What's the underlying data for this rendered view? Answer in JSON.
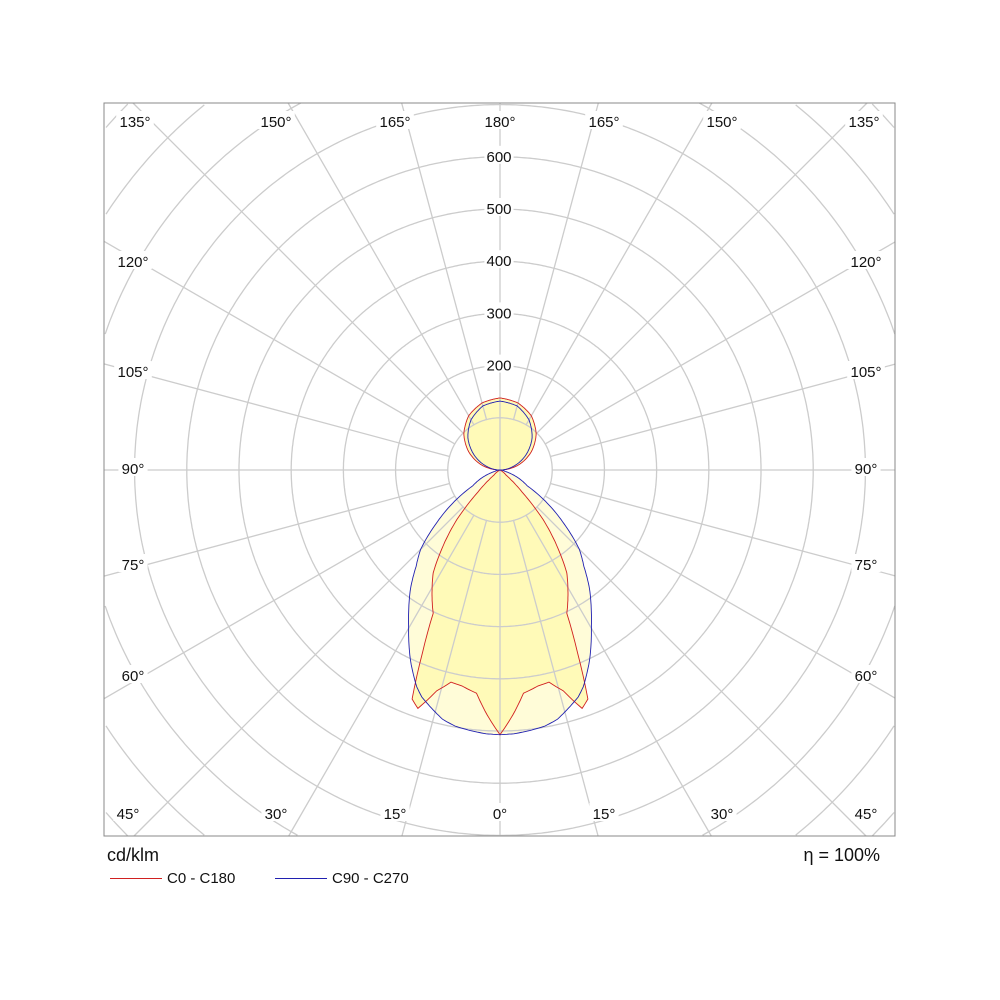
{
  "chart_data": {
    "type": "polar",
    "unit": "cd/klm",
    "efficiency": "η = 100%",
    "radial_ticks": [
      200,
      300,
      400,
      500,
      600
    ],
    "radial_tick_labels": [
      "200",
      "300",
      "400",
      "500",
      "600"
    ],
    "radial_grid_step": 100,
    "angle_grid_step": 15,
    "angle_labels": {
      "top": [
        "135°",
        "150°",
        "165°",
        "180°",
        "165°",
        "150°",
        "135°"
      ],
      "left": [
        "120°",
        "105°",
        "90°",
        "75°",
        "60°"
      ],
      "right": [
        "120°",
        "105°",
        "90°",
        "75°",
        "60°"
      ],
      "bottom": [
        "45°",
        "30°",
        "15°",
        "0°",
        "15°",
        "30°",
        "45°"
      ]
    },
    "grid": true,
    "legend_position": "bottom-left",
    "angles": [
      0,
      3,
      6,
      10,
      13,
      16,
      19,
      21,
      23,
      25,
      30,
      33,
      37,
      41,
      45,
      50,
      60,
      75,
      90,
      105,
      120,
      135,
      150,
      165,
      180
    ],
    "series": [
      {
        "name": "C0 - C180",
        "color": "#d02020",
        "values": [
          507,
          470,
          430,
          420,
          417,
          440,
          483,
          470,
          380,
          303,
          260,
          235,
          180,
          126,
          60,
          15,
          3,
          0,
          0,
          36,
          69,
          98,
          120,
          133,
          138
        ]
      },
      {
        "name": "C90 - C270",
        "color": "#2020b0",
        "values": [
          507,
          506,
          503,
          498,
          490,
          475,
          460,
          445,
          425,
          405,
          350,
          321,
          285,
          245,
          215,
          160,
          60,
          10,
          0,
          26,
          57,
          87,
          111,
          127,
          132
        ]
      }
    ]
  },
  "colors": {
    "grid": "#cccccc",
    "fill_outer": "#fffcd8",
    "fill_inner": "#fffab8"
  }
}
